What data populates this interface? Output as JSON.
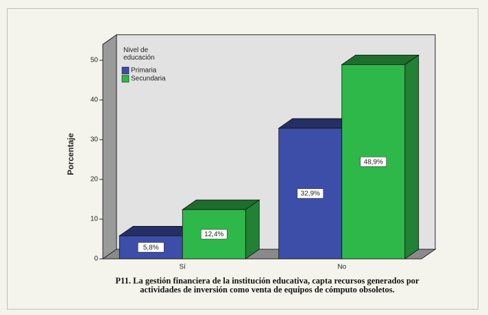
{
  "chart_data": {
    "type": "bar3d",
    "title": "P11. La gestión financiera de la institución educativa, capta recursos  generados por actividades de inversión como venta de equipos de cómputo obsoletos.",
    "y_label": "Porcentaje",
    "legend_title": "Nivel de educación",
    "legend_position": "top-left",
    "categories": [
      "Sí",
      "No"
    ],
    "series": [
      {
        "name": "Primaria",
        "color": "#3d4ea8",
        "values": [
          5.8,
          32.9
        ],
        "value_labels": [
          "5,8%",
          "32,9%"
        ]
      },
      {
        "name": "Secundaria",
        "color": "#2fb84a",
        "values": [
          12.4,
          48.9
        ],
        "value_labels": [
          "12,4%",
          "48,9%"
        ]
      }
    ],
    "ylim": [
      0,
      54
    ],
    "yticks": [
      0,
      10,
      20,
      30,
      40,
      50
    ]
  }
}
